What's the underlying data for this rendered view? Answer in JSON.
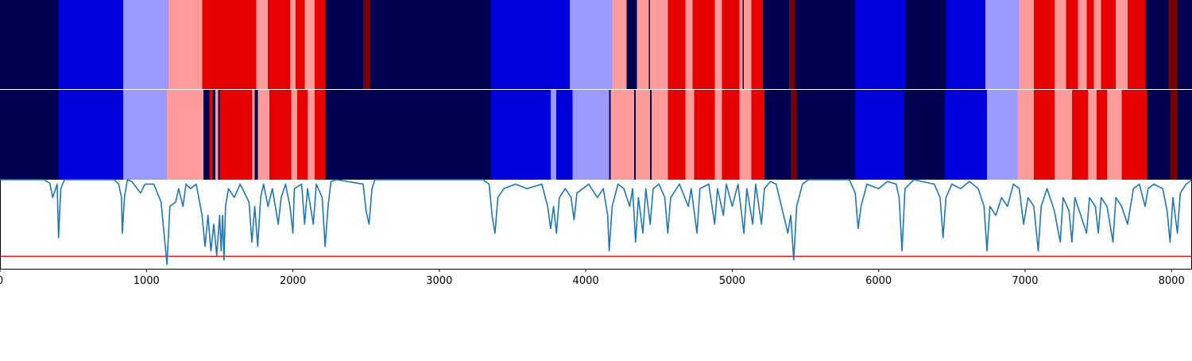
{
  "chart_data": {
    "type": "heatmap",
    "xlim": [
      0,
      8140
    ],
    "x_ticks": [
      0,
      1000,
      2000,
      3000,
      4000,
      5000,
      6000,
      7000,
      8000
    ],
    "x_tick_labels": [
      "0",
      "1000",
      "2000",
      "3000",
      "4000",
      "5000",
      "6000",
      "7000",
      "8000"
    ],
    "grid": false,
    "legend": "none",
    "colors": {
      "0": "#000050",
      "1": "#0000dc",
      "2": "#9b9bff",
      "3": "#ff9b9b",
      "4": "#e60000",
      "5": "#780000",
      "line": "#1f77b4",
      "threshold": "#e41a1c",
      "divider": "#ffffff",
      "axis": "#000000"
    },
    "segmentation_top": [
      [
        0,
        400,
        0
      ],
      [
        400,
        840,
        1
      ],
      [
        840,
        1150,
        2
      ],
      [
        1150,
        1380,
        3
      ],
      [
        1380,
        1750,
        4
      ],
      [
        1750,
        1830,
        3
      ],
      [
        1830,
        1980,
        4
      ],
      [
        1980,
        2020,
        3
      ],
      [
        2020,
        2080,
        4
      ],
      [
        2080,
        2150,
        3
      ],
      [
        2150,
        2220,
        4
      ],
      [
        2220,
        2480,
        0
      ],
      [
        2480,
        2530,
        5
      ],
      [
        2530,
        3350,
        0
      ],
      [
        3350,
        3890,
        1
      ],
      [
        3890,
        4180,
        2
      ],
      [
        4180,
        4280,
        3
      ],
      [
        4280,
        4350,
        0
      ],
      [
        4350,
        4430,
        3
      ],
      [
        4430,
        4440,
        0
      ],
      [
        4440,
        4560,
        3
      ],
      [
        4560,
        4680,
        4
      ],
      [
        4680,
        4730,
        3
      ],
      [
        4730,
        4880,
        4
      ],
      [
        4880,
        4930,
        3
      ],
      [
        4930,
        5050,
        4
      ],
      [
        5050,
        5070,
        3
      ],
      [
        5070,
        5080,
        0
      ],
      [
        5080,
        5130,
        3
      ],
      [
        5130,
        5210,
        4
      ],
      [
        5210,
        5390,
        0
      ],
      [
        5390,
        5430,
        5
      ],
      [
        5430,
        5840,
        0
      ],
      [
        5840,
        6180,
        1
      ],
      [
        6180,
        6460,
        0
      ],
      [
        6460,
        6730,
        1
      ],
      [
        6730,
        6960,
        2
      ],
      [
        6960,
        7060,
        3
      ],
      [
        7060,
        7200,
        4
      ],
      [
        7200,
        7280,
        3
      ],
      [
        7280,
        7360,
        4
      ],
      [
        7360,
        7420,
        3
      ],
      [
        7420,
        7470,
        4
      ],
      [
        7470,
        7520,
        3
      ],
      [
        7520,
        7620,
        4
      ],
      [
        7620,
        7700,
        3
      ],
      [
        7700,
        7820,
        4
      ],
      [
        7820,
        7980,
        0
      ],
      [
        7980,
        8040,
        5
      ],
      [
        8040,
        8140,
        0
      ]
    ],
    "segmentation_bottom": [
      [
        0,
        400,
        0
      ],
      [
        400,
        840,
        1
      ],
      [
        840,
        1140,
        2
      ],
      [
        1140,
        1390,
        3
      ],
      [
        1390,
        1430,
        0
      ],
      [
        1430,
        1450,
        4
      ],
      [
        1450,
        1470,
        0
      ],
      [
        1470,
        1490,
        3
      ],
      [
        1490,
        1500,
        0
      ],
      [
        1500,
        1520,
        4
      ],
      [
        1520,
        1720,
        4
      ],
      [
        1720,
        1740,
        3
      ],
      [
        1740,
        1760,
        0
      ],
      [
        1760,
        1840,
        3
      ],
      [
        1840,
        1990,
        4
      ],
      [
        1990,
        2030,
        3
      ],
      [
        2030,
        2100,
        4
      ],
      [
        2100,
        2150,
        3
      ],
      [
        2150,
        2220,
        4
      ],
      [
        2220,
        3350,
        0
      ],
      [
        3350,
        3760,
        1
      ],
      [
        3760,
        3800,
        2
      ],
      [
        3800,
        3910,
        1
      ],
      [
        3910,
        4160,
        2
      ],
      [
        4160,
        4170,
        0
      ],
      [
        4170,
        4330,
        3
      ],
      [
        4330,
        4340,
        0
      ],
      [
        4340,
        4440,
        3
      ],
      [
        4440,
        4450,
        0
      ],
      [
        4450,
        4560,
        3
      ],
      [
        4560,
        4680,
        4
      ],
      [
        4680,
        4740,
        3
      ],
      [
        4740,
        4880,
        4
      ],
      [
        4880,
        4930,
        3
      ],
      [
        4930,
        5050,
        4
      ],
      [
        5050,
        5130,
        3
      ],
      [
        5130,
        5220,
        4
      ],
      [
        5220,
        5400,
        0
      ],
      [
        5400,
        5440,
        5
      ],
      [
        5440,
        5840,
        0
      ],
      [
        5840,
        6170,
        1
      ],
      [
        6170,
        6450,
        0
      ],
      [
        6450,
        6740,
        1
      ],
      [
        6740,
        6950,
        2
      ],
      [
        6950,
        7060,
        3
      ],
      [
        7060,
        7200,
        4
      ],
      [
        7200,
        7320,
        3
      ],
      [
        7320,
        7430,
        4
      ],
      [
        7430,
        7490,
        3
      ],
      [
        7490,
        7560,
        4
      ],
      [
        7560,
        7660,
        3
      ],
      [
        7660,
        7740,
        4
      ],
      [
        7740,
        7830,
        4
      ],
      [
        7830,
        7990,
        0
      ],
      [
        7990,
        8040,
        5
      ],
      [
        8040,
        8140,
        0
      ]
    ],
    "signal_ylim": [
      -1.0,
      0.0
    ],
    "threshold": -0.86,
    "signal": [
      [
        0,
        0.0
      ],
      [
        300,
        0.0
      ],
      [
        340,
        -0.04
      ],
      [
        360,
        -0.2
      ],
      [
        390,
        -0.05
      ],
      [
        400,
        -0.65
      ],
      [
        415,
        -0.1
      ],
      [
        440,
        0.0
      ],
      [
        780,
        0.0
      ],
      [
        810,
        -0.05
      ],
      [
        830,
        -0.2
      ],
      [
        835,
        -0.6
      ],
      [
        850,
        -0.2
      ],
      [
        870,
        0.0
      ],
      [
        900,
        -0.02
      ],
      [
        960,
        -0.15
      ],
      [
        990,
        -0.05
      ],
      [
        1050,
        -0.05
      ],
      [
        1100,
        -0.25
      ],
      [
        1140,
        -0.95
      ],
      [
        1160,
        -0.3
      ],
      [
        1200,
        -0.25
      ],
      [
        1220,
        -0.1
      ],
      [
        1250,
        -0.3
      ],
      [
        1270,
        -0.05
      ],
      [
        1300,
        -0.1
      ],
      [
        1340,
        -0.05
      ],
      [
        1380,
        -0.4
      ],
      [
        1400,
        -0.75
      ],
      [
        1420,
        -0.4
      ],
      [
        1440,
        -0.8
      ],
      [
        1460,
        -0.5
      ],
      [
        1480,
        -0.85
      ],
      [
        1500,
        -0.4
      ],
      [
        1510,
        -0.8
      ],
      [
        1520,
        -0.4
      ],
      [
        1530,
        -0.9
      ],
      [
        1540,
        -0.3
      ],
      [
        1560,
        -0.1
      ],
      [
        1600,
        -0.2
      ],
      [
        1640,
        -0.05
      ],
      [
        1700,
        -0.25
      ],
      [
        1720,
        -0.7
      ],
      [
        1740,
        -0.3
      ],
      [
        1760,
        -0.75
      ],
      [
        1780,
        -0.2
      ],
      [
        1800,
        -0.05
      ],
      [
        1830,
        -0.3
      ],
      [
        1860,
        -0.1
      ],
      [
        1900,
        -0.5
      ],
      [
        1920,
        -0.2
      ],
      [
        1950,
        -0.05
      ],
      [
        1980,
        -0.3
      ],
      [
        2000,
        -0.6
      ],
      [
        2010,
        -0.1
      ],
      [
        2060,
        -0.05
      ],
      [
        2080,
        -0.5
      ],
      [
        2100,
        -0.1
      ],
      [
        2140,
        -0.5
      ],
      [
        2160,
        -0.05
      ],
      [
        2200,
        -0.2
      ],
      [
        2220,
        -0.75
      ],
      [
        2240,
        -0.3
      ],
      [
        2260,
        -0.02
      ],
      [
        2300,
        0.0
      ],
      [
        2480,
        -0.05
      ],
      [
        2500,
        -0.35
      ],
      [
        2520,
        -0.5
      ],
      [
        2540,
        -0.1
      ],
      [
        2560,
        0.0
      ],
      [
        3300,
        0.0
      ],
      [
        3340,
        -0.05
      ],
      [
        3360,
        -0.4
      ],
      [
        3380,
        -0.6
      ],
      [
        3400,
        -0.2
      ],
      [
        3440,
        -0.1
      ],
      [
        3520,
        -0.05
      ],
      [
        3600,
        -0.1
      ],
      [
        3700,
        -0.05
      ],
      [
        3740,
        -0.3
      ],
      [
        3760,
        -0.55
      ],
      [
        3780,
        -0.3
      ],
      [
        3800,
        -0.6
      ],
      [
        3820,
        -0.2
      ],
      [
        3860,
        -0.1
      ],
      [
        3900,
        -0.2
      ],
      [
        3920,
        -0.45
      ],
      [
        3940,
        -0.15
      ],
      [
        3980,
        -0.1
      ],
      [
        4020,
        -0.05
      ],
      [
        4080,
        -0.2
      ],
      [
        4120,
        -0.1
      ],
      [
        4150,
        -0.4
      ],
      [
        4160,
        -0.8
      ],
      [
        4180,
        -0.3
      ],
      [
        4220,
        -0.05
      ],
      [
        4260,
        -0.1
      ],
      [
        4300,
        -0.3
      ],
      [
        4320,
        -0.1
      ],
      [
        4340,
        -0.7
      ],
      [
        4360,
        -0.2
      ],
      [
        4390,
        -0.6
      ],
      [
        4410,
        -0.1
      ],
      [
        4440,
        -0.5
      ],
      [
        4460,
        -0.1
      ],
      [
        4500,
        -0.05
      ],
      [
        4540,
        -0.2
      ],
      [
        4560,
        -0.6
      ],
      [
        4580,
        -0.2
      ],
      [
        4640,
        -0.05
      ],
      [
        4700,
        -0.3
      ],
      [
        4720,
        -0.1
      ],
      [
        4760,
        -0.6
      ],
      [
        4780,
        -0.1
      ],
      [
        4840,
        -0.05
      ],
      [
        4880,
        -0.5
      ],
      [
        4900,
        -0.1
      ],
      [
        4940,
        -0.4
      ],
      [
        4960,
        -0.05
      ],
      [
        5000,
        -0.3
      ],
      [
        5040,
        -0.05
      ],
      [
        5080,
        -0.6
      ],
      [
        5100,
        -0.1
      ],
      [
        5140,
        -0.5
      ],
      [
        5160,
        -0.05
      ],
      [
        5200,
        -0.5
      ],
      [
        5220,
        -0.1
      ],
      [
        5260,
        -0.02
      ],
      [
        5300,
        -0.05
      ],
      [
        5380,
        -0.6
      ],
      [
        5400,
        -0.4
      ],
      [
        5420,
        -0.9
      ],
      [
        5440,
        -0.3
      ],
      [
        5480,
        -0.05
      ],
      [
        5520,
        0.0
      ],
      [
        5800,
        0.0
      ],
      [
        5840,
        -0.15
      ],
      [
        5860,
        -0.55
      ],
      [
        5880,
        -0.3
      ],
      [
        5920,
        -0.05
      ],
      [
        6000,
        -0.1
      ],
      [
        6060,
        -0.02
      ],
      [
        6120,
        -0.05
      ],
      [
        6140,
        -0.2
      ],
      [
        6160,
        -0.8
      ],
      [
        6180,
        -0.1
      ],
      [
        6240,
        0.0
      ],
      [
        6380,
        -0.05
      ],
      [
        6420,
        -0.2
      ],
      [
        6440,
        -0.65
      ],
      [
        6460,
        -0.2
      ],
      [
        6500,
        -0.05
      ],
      [
        6560,
        -0.1
      ],
      [
        6620,
        -0.02
      ],
      [
        6680,
        -0.1
      ],
      [
        6720,
        -0.3
      ],
      [
        6740,
        -0.8
      ],
      [
        6760,
        -0.3
      ],
      [
        6800,
        -0.4
      ],
      [
        6840,
        -0.2
      ],
      [
        6880,
        -0.3
      ],
      [
        6920,
        -0.05
      ],
      [
        6960,
        -0.1
      ],
      [
        6990,
        -0.5
      ],
      [
        7020,
        -0.2
      ],
      [
        7060,
        -0.3
      ],
      [
        7090,
        -0.8
      ],
      [
        7110,
        -0.3
      ],
      [
        7150,
        -0.1
      ],
      [
        7200,
        -0.35
      ],
      [
        7240,
        -0.7
      ],
      [
        7260,
        -0.2
      ],
      [
        7300,
        -0.35
      ],
      [
        7320,
        -0.7
      ],
      [
        7340,
        -0.2
      ],
      [
        7380,
        -0.4
      ],
      [
        7420,
        -0.6
      ],
      [
        7440,
        -0.2
      ],
      [
        7480,
        -0.3
      ],
      [
        7500,
        -0.6
      ],
      [
        7520,
        -0.2
      ],
      [
        7560,
        -0.3
      ],
      [
        7600,
        -0.7
      ],
      [
        7620,
        -0.2
      ],
      [
        7660,
        -0.3
      ],
      [
        7700,
        -0.5
      ],
      [
        7740,
        -0.1
      ],
      [
        7780,
        -0.05
      ],
      [
        7820,
        -0.3
      ],
      [
        7840,
        -0.1
      ],
      [
        7880,
        -0.05
      ],
      [
        7940,
        -0.1
      ],
      [
        7970,
        -0.35
      ],
      [
        7990,
        -0.7
      ],
      [
        8010,
        -0.2
      ],
      [
        8040,
        -0.6
      ],
      [
        8060,
        -0.15
      ],
      [
        8100,
        -0.05
      ],
      [
        8140,
        0.0
      ]
    ]
  }
}
